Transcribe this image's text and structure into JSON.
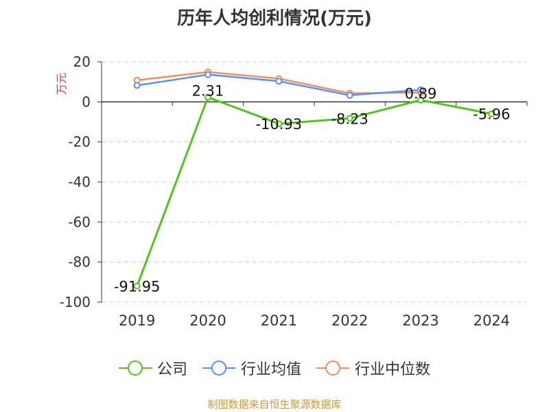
{
  "title": "历年人均创利情况(万元)",
  "source_note": "制图数据来自恒生聚源数据库",
  "chart_data": {
    "type": "line",
    "categories": [
      "2019",
      "2020",
      "2021",
      "2022",
      "2023",
      "2024"
    ],
    "ylabel": "万元",
    "ylim": [
      -100,
      20
    ],
    "yticks": [
      20,
      0,
      -20,
      -40,
      -60,
      -80,
      -100
    ],
    "grid": true,
    "legend_position": "bottom",
    "series": [
      {
        "name": "公司",
        "color": "#52c41a",
        "values": [
          -91.95,
          2.31,
          -10.93,
          -8.23,
          0.89,
          -5.96
        ],
        "labels": [
          "-91.95",
          "2.31",
          "-10.93",
          "-8.23",
          "0.89",
          "-5.96"
        ]
      },
      {
        "name": "行业均值",
        "color": "#5b8ff9",
        "values": [
          8.2,
          13.6,
          10.3,
          3.3,
          6.0,
          null
        ]
      },
      {
        "name": "行业中位数",
        "color": "#f28e5c",
        "values": [
          10.8,
          14.9,
          11.6,
          4.3,
          4.6,
          null
        ]
      }
    ]
  }
}
